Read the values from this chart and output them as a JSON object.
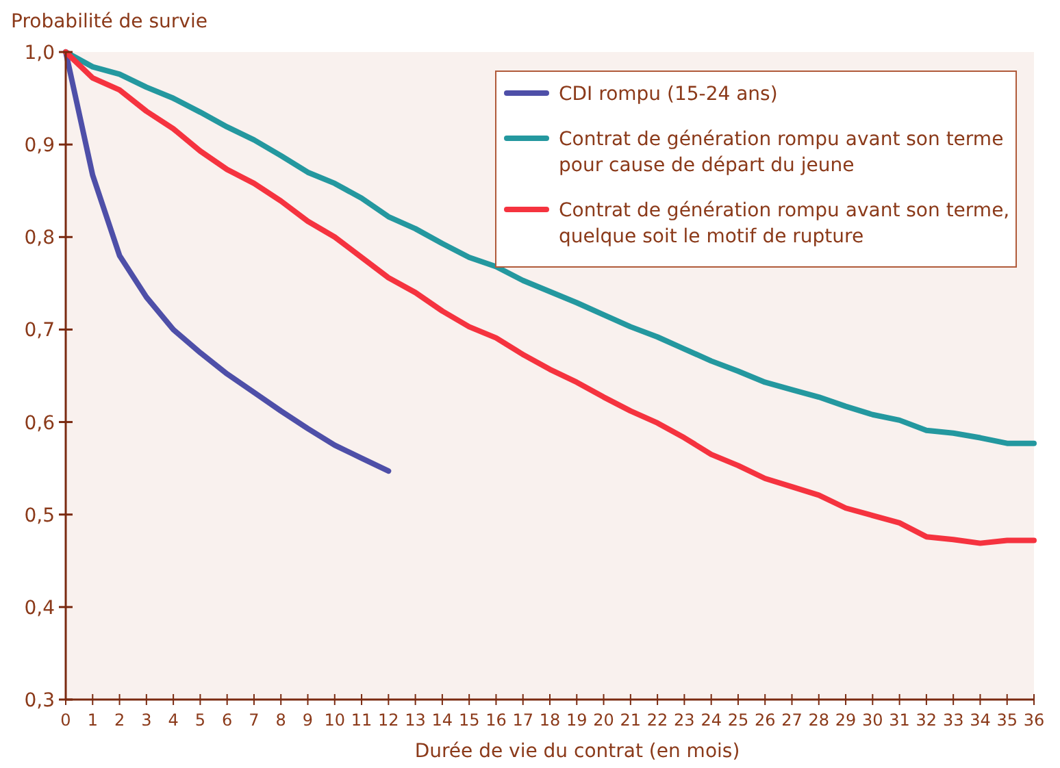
{
  "chart_data": {
    "type": "line",
    "ylabel": "Probabilité de survie",
    "xlabel": "Durée de vie du contrat (en mois)",
    "xlim": [
      0,
      36
    ],
    "xticks": [
      0,
      1,
      2,
      3,
      4,
      5,
      6,
      7,
      8,
      9,
      10,
      11,
      12,
      13,
      14,
      15,
      16,
      17,
      18,
      19,
      20,
      21,
      22,
      23,
      24,
      25,
      26,
      27,
      28,
      29,
      30,
      31,
      32,
      33,
      34,
      35,
      36
    ],
    "ylim": [
      0.3,
      1.0
    ],
    "yticks": [
      {
        "value": 0.3,
        "label": "0,3"
      },
      {
        "value": 0.4,
        "label": "0,4"
      },
      {
        "value": 0.5,
        "label": "0,5"
      },
      {
        "value": 0.6,
        "label": "0,6"
      },
      {
        "value": 0.7,
        "label": "0,7"
      },
      {
        "value": 0.8,
        "label": "0,8"
      },
      {
        "value": 0.9,
        "label": "0,9"
      },
      {
        "value": 1.0,
        "label": "1,0"
      }
    ],
    "grid": false,
    "legend": "top right",
    "marker": "none",
    "line_style": "solid",
    "series": [
      {
        "name": "CDI rompu (15-24 ans)",
        "color": "#4e4fa8",
        "x": [
          0,
          1,
          2,
          3,
          4,
          5,
          6,
          7,
          8,
          9,
          10,
          11,
          12
        ],
        "values": [
          1.0,
          0.867,
          0.78,
          0.735,
          0.7,
          0.675,
          0.652,
          0.632,
          0.612,
          0.593,
          0.575,
          0.561,
          0.547
        ]
      },
      {
        "name": "Contrat de génération rompu avant son terme pour cause de départ du jeune",
        "color": "#24989f",
        "x": [
          0,
          1,
          2,
          3,
          4,
          5,
          6,
          7,
          8,
          9,
          10,
          11,
          12,
          13,
          14,
          15,
          16,
          17,
          18,
          19,
          20,
          21,
          22,
          23,
          24,
          25,
          26,
          27,
          28,
          29,
          30,
          31,
          32,
          33,
          34,
          35,
          36
        ],
        "values": [
          1.0,
          0.984,
          0.976,
          0.962,
          0.95,
          0.935,
          0.919,
          0.905,
          0.888,
          0.87,
          0.858,
          0.842,
          0.822,
          0.809,
          0.793,
          0.778,
          0.768,
          0.753,
          0.741,
          0.729,
          0.716,
          0.703,
          0.692,
          0.679,
          0.666,
          0.655,
          0.643,
          0.635,
          0.627,
          0.617,
          0.608,
          0.602,
          0.591,
          0.588,
          0.583,
          0.577,
          0.577
        ]
      },
      {
        "name": "Contrat de génération rompu avant son terme, quelque soit le motif de rupture",
        "color": "#f5333f",
        "x": [
          0,
          1,
          2,
          3,
          4,
          5,
          6,
          7,
          8,
          9,
          10,
          11,
          12,
          13,
          14,
          15,
          16,
          17,
          18,
          19,
          20,
          21,
          22,
          23,
          24,
          25,
          26,
          27,
          28,
          29,
          30,
          31,
          32,
          33,
          34,
          35,
          36
        ],
        "values": [
          1.0,
          0.972,
          0.959,
          0.936,
          0.917,
          0.893,
          0.873,
          0.858,
          0.839,
          0.817,
          0.8,
          0.778,
          0.756,
          0.74,
          0.72,
          0.703,
          0.691,
          0.673,
          0.657,
          0.643,
          0.627,
          0.612,
          0.599,
          0.583,
          0.565,
          0.553,
          0.539,
          0.53,
          0.521,
          0.507,
          0.499,
          0.491,
          0.476,
          0.473,
          0.469,
          0.472,
          0.472
        ]
      }
    ]
  }
}
